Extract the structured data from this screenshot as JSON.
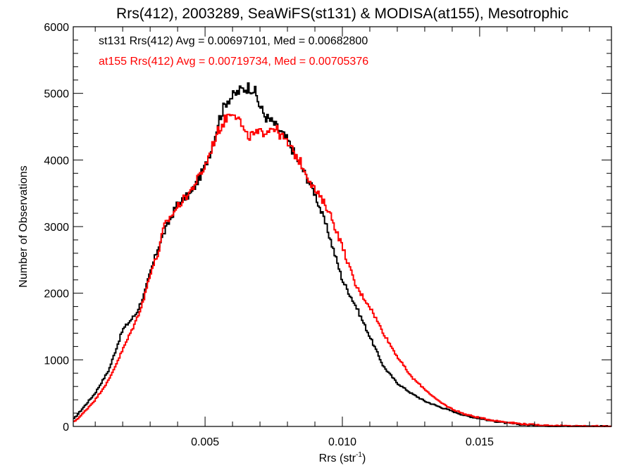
{
  "chart_data": {
    "type": "line",
    "title": "Rrs(412), 2003289, SeaWiFS(st131) & MODISA(at155), Mesotrophic",
    "xlabel_main": "Rrs (str",
    "xlabel_sup": "-1",
    "xlabel_close": ")",
    "ylabel": "Number of Observations",
    "xlim": [
      0.0002,
      0.0198
    ],
    "ylim": [
      0,
      6000
    ],
    "x_ticks": [
      0.005,
      0.01,
      0.015
    ],
    "x_tick_labels": [
      "0.005",
      "0.010",
      "0.015"
    ],
    "y_ticks": [
      0,
      1000,
      2000,
      3000,
      4000,
      5000,
      6000
    ],
    "y_tick_labels": [
      "0",
      "1000",
      "2000",
      "3000",
      "4000",
      "5000",
      "6000"
    ],
    "annotations": [
      {
        "text": "st131 Rrs(412) Avg = 0.00697101, Med = 0.00682800",
        "color": "#000000"
      },
      {
        "text": "at155 Rrs(412) Avg = 0.00719734, Med = 0.00705376",
        "color": "#ff0000"
      }
    ],
    "series": [
      {
        "color": "#000000",
        "points": [
          [
            0.0002,
            100
          ],
          [
            0.0005,
            250
          ],
          [
            0.001,
            500
          ],
          [
            0.0015,
            850
          ],
          [
            0.002,
            1450
          ],
          [
            0.0025,
            1700
          ],
          [
            0.0028,
            2000
          ],
          [
            0.003,
            2300
          ],
          [
            0.0033,
            2700
          ],
          [
            0.0035,
            2900
          ],
          [
            0.004,
            3350
          ],
          [
            0.0045,
            3500
          ],
          [
            0.005,
            3900
          ],
          [
            0.0053,
            4250
          ],
          [
            0.0055,
            4600
          ],
          [
            0.0058,
            4900
          ],
          [
            0.006,
            4950
          ],
          [
            0.0063,
            5050
          ],
          [
            0.0066,
            5100
          ],
          [
            0.0068,
            5050
          ],
          [
            0.007,
            4800
          ],
          [
            0.0072,
            4650
          ],
          [
            0.0075,
            4550
          ],
          [
            0.008,
            4300
          ],
          [
            0.0085,
            3900
          ],
          [
            0.009,
            3500
          ],
          [
            0.0095,
            2900
          ],
          [
            0.01,
            2200
          ],
          [
            0.0105,
            1800
          ],
          [
            0.011,
            1350
          ],
          [
            0.0115,
            900
          ],
          [
            0.012,
            650
          ],
          [
            0.0125,
            500
          ],
          [
            0.013,
            380
          ],
          [
            0.0135,
            300
          ],
          [
            0.014,
            230
          ],
          [
            0.0145,
            160
          ],
          [
            0.015,
            120
          ],
          [
            0.0155,
            80
          ],
          [
            0.016,
            50
          ],
          [
            0.0165,
            30
          ],
          [
            0.017,
            18
          ],
          [
            0.0175,
            10
          ],
          [
            0.018,
            5
          ],
          [
            0.019,
            2
          ],
          [
            0.0198,
            1
          ]
        ]
      },
      {
        "color": "#ff0000",
        "points": [
          [
            0.0002,
            60
          ],
          [
            0.0005,
            170
          ],
          [
            0.001,
            400
          ],
          [
            0.0015,
            700
          ],
          [
            0.002,
            1150
          ],
          [
            0.0025,
            1600
          ],
          [
            0.0028,
            1950
          ],
          [
            0.003,
            2300
          ],
          [
            0.0033,
            2600
          ],
          [
            0.0035,
            3000
          ],
          [
            0.004,
            3300
          ],
          [
            0.0045,
            3550
          ],
          [
            0.005,
            3900
          ],
          [
            0.0053,
            4250
          ],
          [
            0.0055,
            4450
          ],
          [
            0.0058,
            4650
          ],
          [
            0.006,
            4750
          ],
          [
            0.0062,
            4650
          ],
          [
            0.0065,
            4350
          ],
          [
            0.007,
            4400
          ],
          [
            0.0075,
            4500
          ],
          [
            0.008,
            4250
          ],
          [
            0.0085,
            3950
          ],
          [
            0.009,
            3550
          ],
          [
            0.0095,
            3250
          ],
          [
            0.01,
            2700
          ],
          [
            0.0105,
            2100
          ],
          [
            0.011,
            1800
          ],
          [
            0.0115,
            1400
          ],
          [
            0.012,
            1050
          ],
          [
            0.0125,
            750
          ],
          [
            0.013,
            560
          ],
          [
            0.0135,
            380
          ],
          [
            0.014,
            260
          ],
          [
            0.0145,
            180
          ],
          [
            0.015,
            130
          ],
          [
            0.0155,
            90
          ],
          [
            0.016,
            65
          ],
          [
            0.0165,
            40
          ],
          [
            0.017,
            25
          ],
          [
            0.0175,
            14
          ],
          [
            0.018,
            8
          ],
          [
            0.019,
            3
          ],
          [
            0.0198,
            1
          ]
        ]
      }
    ]
  }
}
